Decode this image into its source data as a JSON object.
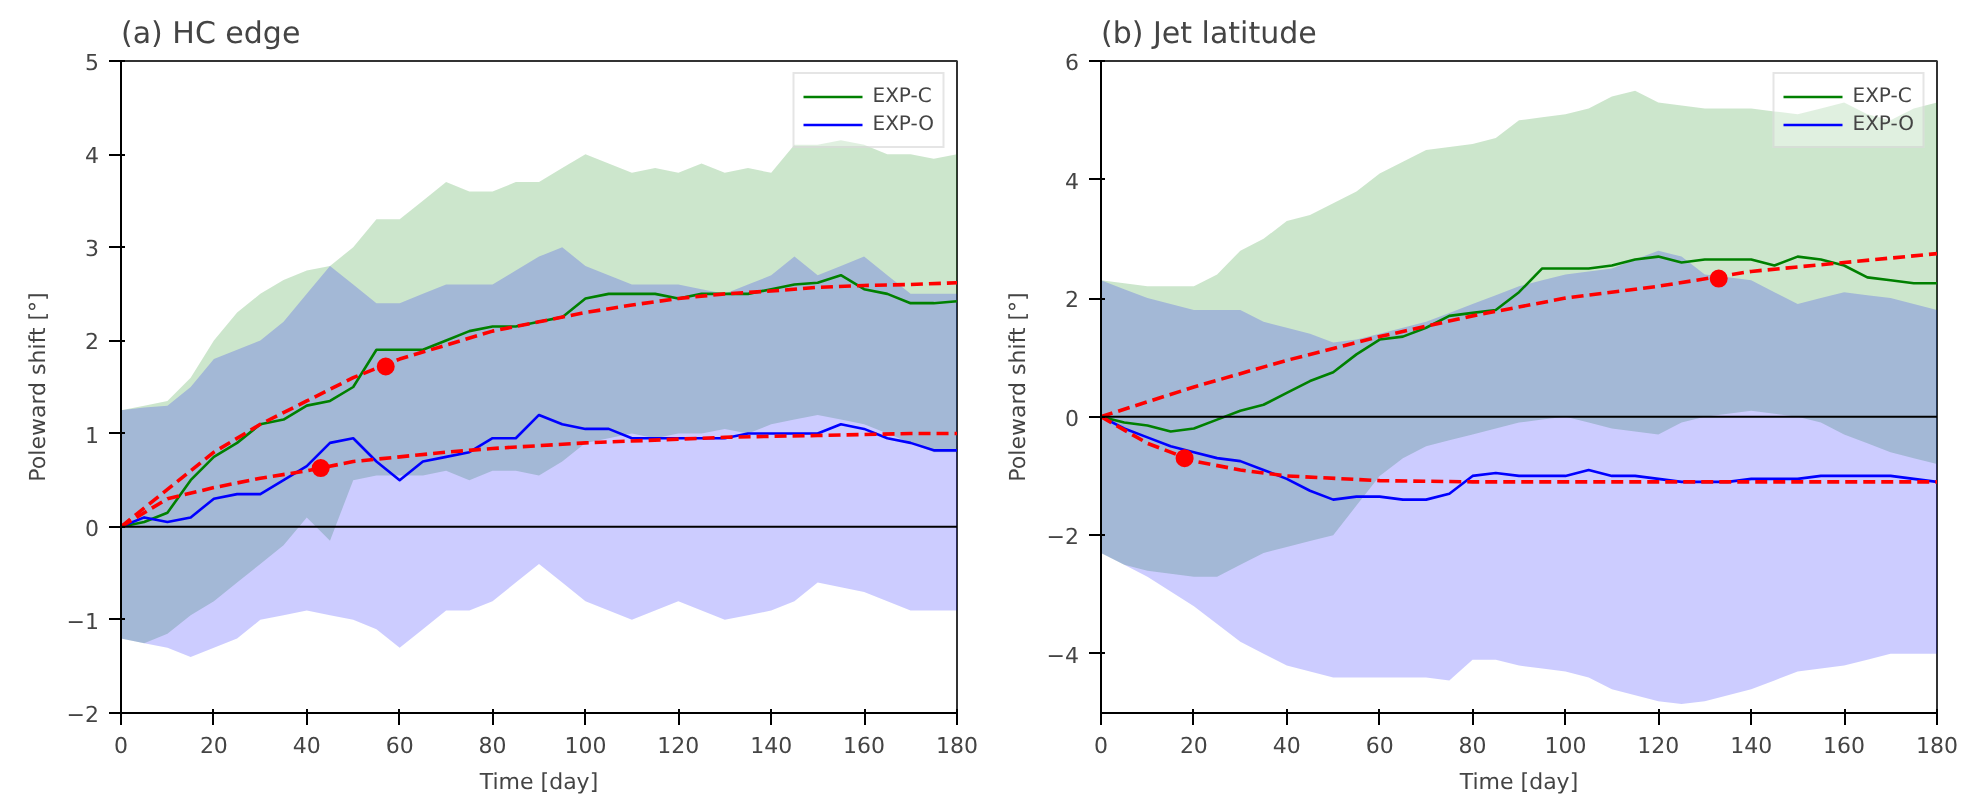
{
  "chart_data": [
    {
      "type": "line",
      "title": "(a) HC edge",
      "xlabel": "Time [day]",
      "ylabel": "Poleward shift [°]",
      "xlim": [
        0,
        180
      ],
      "ylim": [
        -2,
        5
      ],
      "xticks": [
        0,
        20,
        40,
        60,
        80,
        100,
        120,
        140,
        160,
        180
      ],
      "yticks": [
        -2,
        -1,
        0,
        1,
        2,
        3,
        4,
        5
      ],
      "grid": false,
      "legend": "top right",
      "x": [
        0,
        5,
        10,
        15,
        20,
        25,
        30,
        35,
        40,
        45,
        50,
        55,
        60,
        65,
        70,
        75,
        80,
        85,
        90,
        95,
        100,
        105,
        110,
        115,
        120,
        125,
        130,
        135,
        140,
        145,
        150,
        155,
        160,
        165,
        170,
        175,
        180
      ],
      "series": [
        {
          "name": "EXP-C",
          "color": "#008000",
          "values": [
            0,
            0.05,
            0.15,
            0.5,
            0.75,
            0.9,
            1.1,
            1.15,
            1.3,
            1.35,
            1.5,
            1.9,
            1.9,
            1.9,
            2.0,
            2.1,
            2.15,
            2.15,
            2.2,
            2.25,
            2.45,
            2.5,
            2.5,
            2.5,
            2.45,
            2.5,
            2.5,
            2.5,
            2.55,
            2.6,
            2.62,
            2.7,
            2.55,
            2.5,
            2.4,
            2.4,
            2.42
          ],
          "upper": [
            1.25,
            1.3,
            1.35,
            1.6,
            2.0,
            2.3,
            2.5,
            2.65,
            2.75,
            2.8,
            3.0,
            3.3,
            3.3,
            3.5,
            3.7,
            3.6,
            3.6,
            3.7,
            3.7,
            3.85,
            4.0,
            3.9,
            3.8,
            3.85,
            3.8,
            3.9,
            3.8,
            3.85,
            3.8,
            4.1,
            4.1,
            4.15,
            4.1,
            4.0,
            4.0,
            3.95,
            4.0
          ],
          "lower": [
            -1.2,
            -1.25,
            -1.15,
            -0.95,
            -0.8,
            -0.6,
            -0.4,
            -0.2,
            0.1,
            -0.15,
            0.5,
            0.55,
            0.55,
            0.55,
            0.6,
            0.5,
            0.6,
            0.6,
            0.55,
            0.7,
            0.9,
            0.95,
            1.0,
            0.95,
            1.0,
            1.0,
            1.05,
            1.0,
            1.1,
            1.15,
            1.2,
            1.15,
            1.1,
            1.0,
            0.9,
            0.8,
            0.8
          ]
        },
        {
          "name": "EXP-O",
          "color": "#0000ff",
          "values": [
            0,
            0.1,
            0.05,
            0.1,
            0.3,
            0.35,
            0.35,
            0.5,
            0.65,
            0.9,
            0.95,
            0.7,
            0.5,
            0.7,
            0.75,
            0.8,
            0.95,
            0.95,
            1.2,
            1.1,
            1.05,
            1.05,
            0.95,
            0.95,
            0.95,
            0.95,
            0.95,
            1.0,
            1.0,
            1.0,
            1.0,
            1.1,
            1.05,
            0.95,
            0.9,
            0.82,
            0.82
          ],
          "upper": [
            1.25,
            1.28,
            1.3,
            1.5,
            1.8,
            1.9,
            2.0,
            2.2,
            2.5,
            2.8,
            2.6,
            2.4,
            2.4,
            2.5,
            2.6,
            2.6,
            2.6,
            2.75,
            2.9,
            3.0,
            2.8,
            2.7,
            2.6,
            2.6,
            2.6,
            2.55,
            2.5,
            2.6,
            2.7,
            2.9,
            2.7,
            2.8,
            2.9,
            2.7,
            2.5,
            2.5,
            2.5
          ],
          "lower": [
            -1.2,
            -1.25,
            -1.3,
            -1.4,
            -1.3,
            -1.2,
            -1.0,
            -0.95,
            -0.9,
            -0.95,
            -1.0,
            -1.1,
            -1.3,
            -1.1,
            -0.9,
            -0.9,
            -0.8,
            -0.6,
            -0.4,
            -0.6,
            -0.8,
            -0.9,
            -1.0,
            -0.9,
            -0.8,
            -0.9,
            -1.0,
            -0.95,
            -0.9,
            -0.8,
            -0.6,
            -0.65,
            -0.7,
            -0.8,
            -0.9,
            -0.9,
            -0.9
          ]
        },
        {
          "type": "line",
          "color": "#ff0000",
          "line_style": "dashed",
          "x": [
            0,
            10,
            20,
            30,
            40,
            50,
            60,
            70,
            80,
            90,
            100,
            110,
            120,
            130,
            140,
            150,
            160,
            170,
            180
          ],
          "values": [
            0,
            0.4,
            0.8,
            1.1,
            1.35,
            1.6,
            1.8,
            1.95,
            2.1,
            2.2,
            2.3,
            2.38,
            2.45,
            2.5,
            2.53,
            2.57,
            2.59,
            2.6,
            2.62
          ]
        },
        {
          "type": "line",
          "color": "#ff0000",
          "line_style": "dashed",
          "x": [
            0,
            10,
            20,
            30,
            40,
            50,
            60,
            70,
            80,
            90,
            100,
            110,
            120,
            130,
            140,
            150,
            160,
            170,
            180
          ],
          "values": [
            0,
            0.3,
            0.42,
            0.52,
            0.6,
            0.7,
            0.75,
            0.8,
            0.84,
            0.87,
            0.9,
            0.92,
            0.94,
            0.96,
            0.97,
            0.98,
            0.99,
            1.0,
            1.0
          ]
        },
        {
          "type": "scatter",
          "color": "#ff0000",
          "marker": "circle",
          "x": [
            57,
            43
          ],
          "values": [
            1.72,
            0.63
          ]
        }
      ],
      "ref_lines": [
        {
          "axis": "y",
          "value": 0,
          "color": "#000000"
        }
      ]
    },
    {
      "type": "line",
      "title": "(b) Jet latitude",
      "xlabel": "Time [day]",
      "ylabel": "Poleward shift [°]",
      "xlim": [
        0,
        180
      ],
      "ylim": [
        -5,
        6
      ],
      "xticks": [
        0,
        20,
        40,
        60,
        80,
        100,
        120,
        140,
        160,
        180
      ],
      "yticks": [
        -4,
        -2,
        0,
        2,
        4,
        6
      ],
      "grid": false,
      "legend": "top right",
      "x": [
        0,
        5,
        10,
        15,
        20,
        25,
        30,
        35,
        40,
        45,
        50,
        55,
        60,
        65,
        70,
        75,
        80,
        85,
        90,
        95,
        100,
        105,
        110,
        115,
        120,
        125,
        130,
        135,
        140,
        145,
        150,
        155,
        160,
        165,
        170,
        175,
        180
      ],
      "series": [
        {
          "name": "EXP-C",
          "color": "#008000",
          "values": [
            0,
            -0.1,
            -0.15,
            -0.25,
            -0.2,
            -0.05,
            0.1,
            0.2,
            0.4,
            0.6,
            0.75,
            1.05,
            1.3,
            1.35,
            1.5,
            1.7,
            1.75,
            1.8,
            2.1,
            2.5,
            2.5,
            2.5,
            2.55,
            2.65,
            2.7,
            2.6,
            2.65,
            2.65,
            2.65,
            2.55,
            2.7,
            2.65,
            2.55,
            2.35,
            2.3,
            2.25,
            2.25
          ],
          "upper": [
            2.3,
            2.25,
            2.2,
            2.2,
            2.2,
            2.4,
            2.8,
            3.0,
            3.3,
            3.4,
            3.6,
            3.8,
            4.1,
            4.3,
            4.5,
            4.55,
            4.6,
            4.7,
            5.0,
            5.05,
            5.1,
            5.2,
            5.4,
            5.5,
            5.3,
            5.25,
            5.2,
            5.2,
            5.2,
            5.15,
            5.1,
            5.2,
            5.3,
            5.1,
            5.0,
            5.2,
            5.3
          ],
          "lower": [
            -2.3,
            -2.5,
            -2.6,
            -2.65,
            -2.7,
            -2.7,
            -2.5,
            -2.3,
            -2.2,
            -2.1,
            -2.0,
            -1.5,
            -1.0,
            -0.7,
            -0.5,
            -0.4,
            -0.3,
            -0.2,
            -0.1,
            -0.05,
            0.0,
            -0.1,
            -0.2,
            -0.25,
            -0.3,
            -0.1,
            0.0,
            0.05,
            0.1,
            0.05,
            0.0,
            -0.1,
            -0.3,
            -0.45,
            -0.6,
            -0.7,
            -0.8
          ]
        },
        {
          "name": "EXP-O",
          "color": "#0000ff",
          "values": [
            0,
            -0.2,
            -0.35,
            -0.5,
            -0.6,
            -0.7,
            -0.75,
            -0.9,
            -1.05,
            -1.25,
            -1.4,
            -1.35,
            -1.35,
            -1.4,
            -1.4,
            -1.3,
            -1.0,
            -0.95,
            -1.0,
            -1.0,
            -1.0,
            -0.9,
            -1.0,
            -1.0,
            -1.05,
            -1.1,
            -1.1,
            -1.1,
            -1.05,
            -1.05,
            -1.05,
            -1.0,
            -1.0,
            -1.0,
            -1.0,
            -1.05,
            -1.1
          ],
          "upper": [
            2.3,
            2.15,
            2.0,
            1.9,
            1.8,
            1.8,
            1.8,
            1.6,
            1.5,
            1.4,
            1.25,
            1.3,
            1.4,
            1.5,
            1.6,
            1.75,
            1.9,
            2.05,
            2.2,
            2.3,
            2.4,
            2.45,
            2.5,
            2.65,
            2.8,
            2.7,
            2.4,
            2.35,
            2.3,
            2.1,
            1.9,
            2.0,
            2.1,
            2.05,
            2.0,
            1.9,
            1.8
          ],
          "lower": [
            -2.3,
            -2.5,
            -2.7,
            -2.95,
            -3.2,
            -3.5,
            -3.8,
            -4.0,
            -4.2,
            -4.3,
            -4.4,
            -4.4,
            -4.4,
            -4.4,
            -4.4,
            -4.45,
            -4.1,
            -4.1,
            -4.2,
            -4.25,
            -4.3,
            -4.4,
            -4.6,
            -4.7,
            -4.8,
            -4.85,
            -4.8,
            -4.7,
            -4.6,
            -4.45,
            -4.3,
            -4.25,
            -4.2,
            -4.1,
            -4.0,
            -4.0,
            -4.0
          ]
        },
        {
          "type": "line",
          "color": "#ff0000",
          "line_style": "dashed",
          "x": [
            0,
            20,
            40,
            60,
            80,
            100,
            120,
            140,
            160,
            180
          ],
          "values": [
            0,
            0.5,
            0.95,
            1.35,
            1.7,
            2.0,
            2.2,
            2.45,
            2.6,
            2.75
          ]
        },
        {
          "type": "line",
          "color": "#ff0000",
          "line_style": "dashed",
          "x": [
            0,
            10,
            20,
            30,
            40,
            60,
            80,
            100,
            140,
            180
          ],
          "values": [
            0,
            -0.45,
            -0.75,
            -0.9,
            -1.0,
            -1.08,
            -1.1,
            -1.1,
            -1.1,
            -1.1
          ]
        },
        {
          "type": "scatter",
          "color": "#ff0000",
          "marker": "circle",
          "x": [
            133,
            18
          ],
          "values": [
            2.33,
            -0.7
          ]
        }
      ],
      "ref_lines": [
        {
          "axis": "y",
          "value": 0,
          "color": "#000000"
        }
      ]
    }
  ]
}
